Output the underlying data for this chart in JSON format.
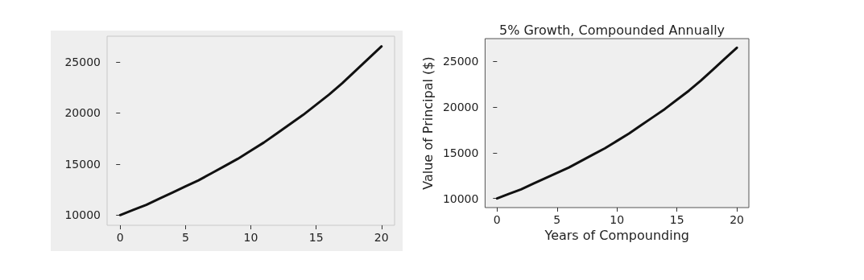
{
  "chart_data": [
    {
      "type": "line",
      "x": [
        0,
        1,
        2,
        3,
        4,
        5,
        6,
        7,
        8,
        9,
        10,
        11,
        12,
        13,
        14,
        15,
        16,
        17,
        18,
        19,
        20
      ],
      "series": [
        {
          "color": "#111111",
          "values": [
            10000,
            10500,
            11000,
            11600,
            12200,
            12800,
            13400,
            14100,
            14800,
            15500,
            16300,
            17100,
            18000,
            18900,
            19800,
            20800,
            21800,
            22900,
            24100,
            25300,
            26500
          ]
        }
      ],
      "xlim": [
        -1,
        21
      ],
      "ylim": [
        9000,
        27500
      ],
      "xticks": [
        0,
        5,
        10,
        15,
        20
      ],
      "yticks": [
        10000,
        15000,
        20000,
        25000
      ],
      "grid": false,
      "marker": "none",
      "line_style": "solid"
    },
    {
      "type": "line",
      "title": "5% Growth, Compounded Annually",
      "xlabel": "Years of Compounding",
      "ylabel": "Value of Principal ($)",
      "x": [
        0,
        1,
        2,
        3,
        4,
        5,
        6,
        7,
        8,
        9,
        10,
        11,
        12,
        13,
        14,
        15,
        16,
        17,
        18,
        19,
        20
      ],
      "series": [
        {
          "color": "#111111",
          "values": [
            10000,
            10500,
            11000,
            11600,
            12200,
            12800,
            13400,
            14100,
            14800,
            15500,
            16300,
            17100,
            18000,
            18900,
            19800,
            20800,
            21800,
            22900,
            24100,
            25300,
            26500
          ]
        }
      ],
      "xlim": [
        -1,
        21
      ],
      "ylim": [
        9000,
        27500
      ],
      "xticks": [
        0,
        5,
        10,
        15,
        20
      ],
      "yticks": [
        10000,
        15000,
        20000,
        25000
      ],
      "grid": false,
      "marker": "none",
      "line_style": "solid"
    }
  ]
}
